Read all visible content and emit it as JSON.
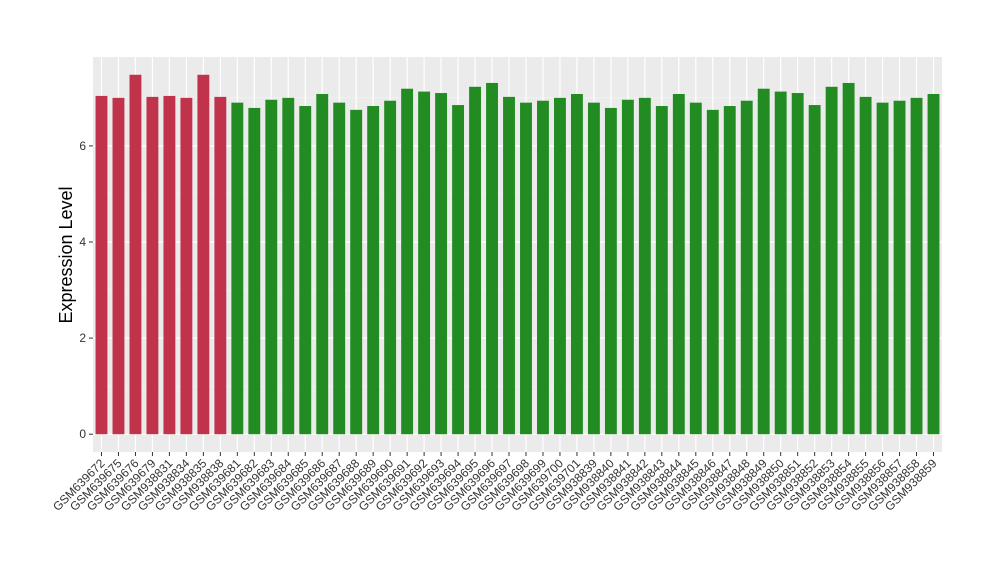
{
  "chart_data": {
    "type": "bar",
    "y_label": "Expression Level",
    "categories": [
      "GSM639672",
      "GSM639675",
      "GSM639676",
      "GSM639679",
      "GSM938831",
      "GSM938834",
      "GSM938835",
      "GSM938838",
      "GSM639681",
      "GSM639682",
      "GSM639683",
      "GSM639684",
      "GSM639685",
      "GSM639686",
      "GSM639687",
      "GSM639688",
      "GSM639689",
      "GSM639690",
      "GSM639691",
      "GSM639692",
      "GSM639693",
      "GSM639694",
      "GSM639695",
      "GSM639696",
      "GSM639697",
      "GSM639698",
      "GSM639699",
      "GSM639700",
      "GSM639701",
      "GSM938839",
      "GSM938840",
      "GSM938841",
      "GSM938842",
      "GSM938843",
      "GSM938844",
      "GSM938845",
      "GSM938846",
      "GSM938847",
      "GSM938848",
      "GSM938849",
      "GSM938850",
      "GSM938851",
      "GSM938852",
      "GSM938853",
      "GSM938854",
      "GSM938855",
      "GSM938856",
      "GSM938857",
      "GSM938858",
      "GSM938859"
    ],
    "values": [
      7.04,
      7.0,
      7.48,
      7.02,
      7.04,
      7.0,
      7.48,
      7.02,
      6.9,
      6.79,
      6.96,
      7.0,
      6.83,
      7.08,
      6.9,
      6.75,
      6.83,
      6.94,
      7.19,
      7.13,
      7.1,
      6.85,
      7.23,
      7.31,
      7.02,
      6.9,
      6.94,
      7.0,
      7.08,
      6.9,
      6.79,
      6.96,
      7.0,
      6.83,
      7.08,
      6.9,
      6.75,
      6.83,
      6.94,
      7.19,
      7.13,
      7.1,
      6.85,
      7.23,
      7.31,
      7.02,
      6.9,
      6.94,
      7.0,
      7.08
    ],
    "colors": [
      "#c0334b",
      "#c0334b",
      "#c0334b",
      "#c0334b",
      "#c0334b",
      "#c0334b",
      "#c0334b",
      "#c0334b",
      "#228b22",
      "#228b22",
      "#228b22",
      "#228b22",
      "#228b22",
      "#228b22",
      "#228b22",
      "#228b22",
      "#228b22",
      "#228b22",
      "#228b22",
      "#228b22",
      "#228b22",
      "#228b22",
      "#228b22",
      "#228b22",
      "#228b22",
      "#228b22",
      "#228b22",
      "#228b22",
      "#228b22",
      "#228b22",
      "#228b22",
      "#228b22",
      "#228b22",
      "#228b22",
      "#228b22",
      "#228b22",
      "#228b22",
      "#228b22",
      "#228b22",
      "#228b22",
      "#228b22",
      "#228b22",
      "#228b22",
      "#228b22",
      "#228b22",
      "#228b22",
      "#228b22",
      "#228b22",
      "#228b22",
      "#228b22"
    ],
    "ylim": [
      -0.37,
      7.85
    ],
    "yticks": [
      0,
      2,
      4,
      6
    ],
    "minor_yticks": [
      1,
      3,
      5,
      7
    ],
    "grid": true
  }
}
